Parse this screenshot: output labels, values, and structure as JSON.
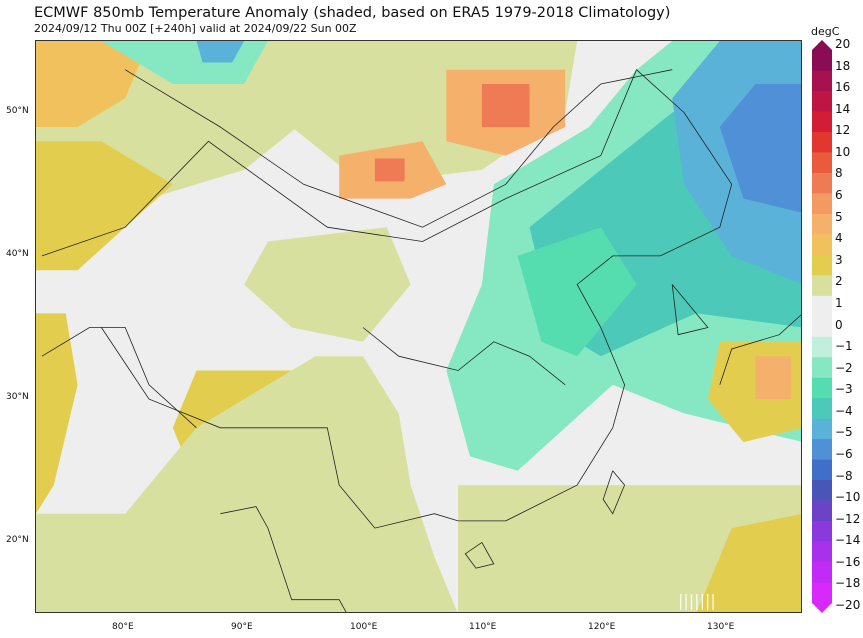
{
  "header": {
    "title": "ECMWF 850mb Temperature Anomaly (shaded, based on ERA5 1979-2018 Climatology)",
    "subtitle": "2024/09/12 Thu 00Z [+240h] valid at 2024/09/22 Sun 00Z"
  },
  "map": {
    "lat_labels": [
      {
        "label": "50°N",
        "lat": 50
      },
      {
        "label": "40°N",
        "lat": 40
      },
      {
        "label": "30°N",
        "lat": 30
      },
      {
        "label": "20°N",
        "lat": 20
      }
    ],
    "lon_labels": [
      {
        "label": "80°E",
        "lon": 80
      },
      {
        "label": "90°E",
        "lon": 90
      },
      {
        "label": "100°E",
        "lon": 100
      },
      {
        "label": "110°E",
        "lon": 110
      },
      {
        "label": "120°E",
        "lon": 120
      },
      {
        "label": "130°E",
        "lon": 130
      }
    ],
    "extent": {
      "lon_min": 72.5,
      "lon_max": 137,
      "lat_min": 15,
      "lat_max": 55
    }
  },
  "colorbar": {
    "unit": "degC",
    "labels": [
      "20",
      "18",
      "16",
      "14",
      "12",
      "10",
      "8",
      "6",
      "5",
      "4",
      "3",
      "2",
      "1",
      "0",
      "−1",
      "−2",
      "−3",
      "−4",
      "−5",
      "−6",
      "−8",
      "−10",
      "−12",
      "−14",
      "−16",
      "−18",
      "−20"
    ],
    "colors": [
      "#8a0c55",
      "#a6124f",
      "#be1544",
      "#d31d37",
      "#e2372e",
      "#ea5a3c",
      "#ef7b55",
      "#f39a63",
      "#f5b06b",
      "#f0c15d",
      "#e3cd4f",
      "#d8e0a0",
      "#eeeeee",
      "#eeeeee",
      "#c0f0dc",
      "#86e8c2",
      "#55ddb0",
      "#4cc9b8",
      "#5bb2d8",
      "#4f90d6",
      "#3f6fc9",
      "#4a55b8",
      "#6a43c6",
      "#8a3adc",
      "#a832ec",
      "#c22bf6",
      "#d828fb"
    ]
  },
  "anomaly_regions": [
    {
      "anom": 2,
      "pts": [
        [
          72.5,
          55
        ],
        [
          98,
          55
        ],
        [
          96,
          50
        ],
        [
          90,
          46
        ],
        [
          82,
          44
        ],
        [
          76,
          43
        ],
        [
          72.5,
          44
        ]
      ]
    },
    {
      "anom": 4,
      "pts": [
        [
          72.5,
          55
        ],
        [
          82,
          55
        ],
        [
          80,
          51
        ],
        [
          76,
          49
        ],
        [
          72.5,
          49
        ]
      ]
    },
    {
      "anom": 3,
      "pts": [
        [
          72.5,
          48
        ],
        [
          78,
          48
        ],
        [
          84,
          45
        ],
        [
          80,
          42
        ],
        [
          76,
          39
        ],
        [
          72.5,
          39
        ]
      ]
    },
    {
      "anom": 3,
      "pts": [
        [
          72.5,
          36
        ],
        [
          75,
          36
        ],
        [
          76,
          31
        ],
        [
          74,
          24
        ],
        [
          72.5,
          22
        ]
      ]
    },
    {
      "anom": 2,
      "pts": [
        [
          93,
          55
        ],
        [
          118,
          55
        ],
        [
          117,
          50
        ],
        [
          110,
          46
        ],
        [
          100,
          45
        ],
        [
          94,
          49
        ]
      ]
    },
    {
      "anom": 5,
      "pts": [
        [
          107,
          53
        ],
        [
          117,
          53
        ],
        [
          117,
          49
        ],
        [
          112,
          47
        ],
        [
          107,
          48
        ]
      ]
    },
    {
      "anom": 7,
      "pts": [
        [
          110,
          52
        ],
        [
          114,
          52
        ],
        [
          114,
          49
        ],
        [
          110,
          49
        ]
      ]
    },
    {
      "anom": 5,
      "pts": [
        [
          98,
          47
        ],
        [
          105,
          48
        ],
        [
          107,
          45
        ],
        [
          104,
          44
        ],
        [
          98,
          44
        ]
      ]
    },
    {
      "anom": 8,
      "pts": [
        [
          101,
          46.8
        ],
        [
          103.5,
          46.8
        ],
        [
          103.5,
          45.2
        ],
        [
          101,
          45.2
        ]
      ]
    },
    {
      "anom": 3,
      "pts": [
        [
          86,
          32
        ],
        [
          98,
          32
        ],
        [
          102,
          28
        ],
        [
          102,
          22
        ],
        [
          100,
          19
        ],
        [
          95,
          18
        ],
        [
          90,
          21
        ],
        [
          86,
          24
        ],
        [
          84,
          28
        ]
      ]
    },
    {
      "anom": 4,
      "pts": [
        [
          88,
          29
        ],
        [
          96,
          29
        ],
        [
          98,
          25
        ],
        [
          96,
          21
        ],
        [
          92,
          22
        ],
        [
          89,
          25
        ]
      ]
    },
    {
      "anom": 2,
      "pts": [
        [
          72.5,
          22
        ],
        [
          80,
          22
        ],
        [
          86,
          28
        ],
        [
          96,
          33
        ],
        [
          100,
          33
        ],
        [
          103,
          29
        ],
        [
          104,
          24
        ],
        [
          106,
          19
        ],
        [
          108,
          15
        ],
        [
          72.5,
          15
        ]
      ]
    },
    {
      "anom": 2,
      "pts": [
        [
          108,
          24
        ],
        [
          137,
          24
        ],
        [
          137,
          15
        ],
        [
          108,
          15
        ]
      ]
    },
    {
      "anom": 3,
      "pts": [
        [
          128,
          15
        ],
        [
          137,
          15
        ],
        [
          137,
          22
        ],
        [
          131,
          21
        ]
      ]
    },
    {
      "anom": 2,
      "pts": [
        [
          92,
          41
        ],
        [
          102,
          42
        ],
        [
          104,
          38
        ],
        [
          100,
          34
        ],
        [
          94,
          35
        ],
        [
          90,
          38
        ]
      ]
    },
    {
      "anom": -2,
      "pts": [
        [
          111,
          45
        ],
        [
          119,
          49
        ],
        [
          123,
          53
        ],
        [
          126,
          55
        ],
        [
          137,
          55
        ],
        [
          137,
          27
        ],
        [
          127,
          29
        ],
        [
          121,
          31
        ],
        [
          117,
          28
        ],
        [
          113,
          25
        ],
        [
          109,
          26
        ],
        [
          107,
          32
        ],
        [
          110,
          38
        ]
      ]
    },
    {
      "anom": -4,
      "pts": [
        [
          114,
          42
        ],
        [
          120,
          46
        ],
        [
          126,
          50
        ],
        [
          137,
          55
        ],
        [
          137,
          35
        ],
        [
          128,
          36
        ],
        [
          120,
          33
        ],
        [
          116,
          35
        ]
      ]
    },
    {
      "anom": -5,
      "pts": [
        [
          126,
          51
        ],
        [
          130,
          55
        ],
        [
          137,
          55
        ],
        [
          137,
          38
        ],
        [
          131,
          40
        ],
        [
          127,
          45
        ]
      ]
    },
    {
      "anom": -3,
      "pts": [
        [
          113,
          40
        ],
        [
          120,
          42
        ],
        [
          123,
          38
        ],
        [
          118,
          33
        ],
        [
          115,
          34
        ]
      ]
    },
    {
      "anom": -6,
      "pts": [
        [
          130,
          49
        ],
        [
          133,
          52
        ],
        [
          137,
          52
        ],
        [
          137,
          43
        ],
        [
          132,
          44
        ]
      ]
    },
    {
      "anom": -2,
      "pts": [
        [
          78,
          55
        ],
        [
          92,
          55
        ],
        [
          90,
          52
        ],
        [
          84,
          52
        ]
      ]
    },
    {
      "anom": -5,
      "pts": [
        [
          86,
          55
        ],
        [
          90,
          55
        ],
        [
          89,
          53.5
        ],
        [
          86.5,
          53.5
        ]
      ]
    },
    {
      "anom": 3,
      "pts": [
        [
          130,
          34
        ],
        [
          137,
          34
        ],
        [
          137,
          28
        ],
        [
          132,
          27
        ],
        [
          129,
          30
        ]
      ]
    },
    {
      "anom": 5,
      "pts": [
        [
          133,
          33
        ],
        [
          136,
          33
        ],
        [
          136,
          30
        ],
        [
          133,
          30
        ]
      ]
    }
  ],
  "watermark": "|||||||"
}
